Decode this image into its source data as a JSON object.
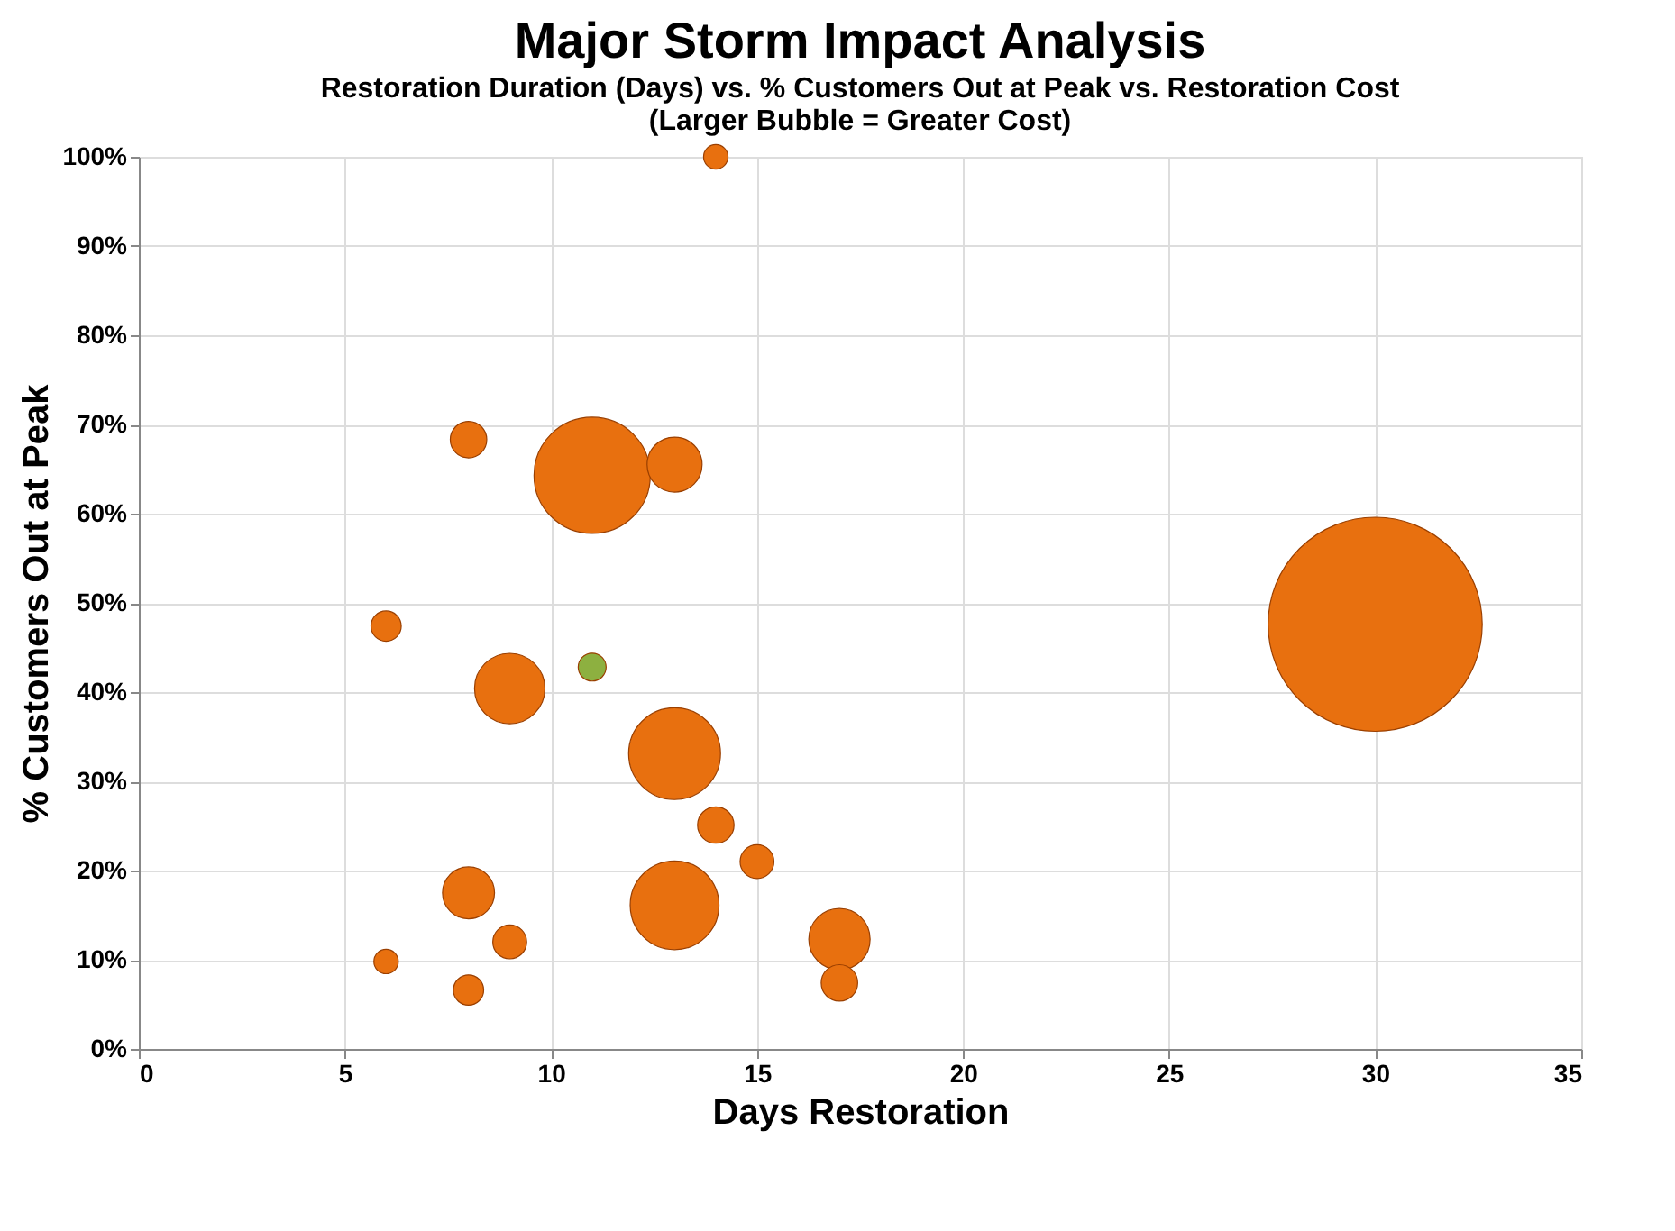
{
  "chart_data": {
    "type": "bubble",
    "title": "Major Storm Impact Analysis",
    "subtitle": "Restoration Duration (Days) vs. % Customers Out at Peak vs. Restoration Cost",
    "annotations": [
      "(Larger Bubble = Greater Cost)"
    ],
    "xlabel": "Days Restoration",
    "ylabel": "% Customers Out at Peak",
    "series": [
      {
        "color": "#e8700f",
        "x": [
          14,
          8,
          11,
          13,
          6,
          30,
          9,
          13,
          14,
          15,
          8,
          13,
          9,
          17,
          6,
          8,
          17
        ],
        "values": [
          100,
          68.3,
          64.3,
          65.5,
          47.4,
          47.6,
          40.4,
          33.1,
          25.1,
          21,
          17.5,
          16.1,
          12,
          12.3,
          9.8,
          6.6,
          7.4
        ],
        "sizes": [
          0.013,
          0.029,
          0.295,
          0.066,
          0.02,
          1,
          0.108,
          0.184,
          0.029,
          0.025,
          0.059,
          0.172,
          0.025,
          0.082,
          0.013,
          0.02,
          0.029
        ]
      },
      {
        "color": "#8db040",
        "x": [
          11
        ],
        "values": [
          42.8
        ],
        "sizes": [
          0.017
        ]
      }
    ],
    "xlim": [
      0,
      35
    ],
    "xticks": [
      0,
      5,
      10,
      15,
      20,
      25,
      30,
      35
    ],
    "ylim": [
      0,
      100
    ],
    "yticks": [
      {
        "value": 0,
        "label": "0%"
      },
      {
        "value": 10,
        "label": "10%"
      },
      {
        "value": 20,
        "label": "20%"
      },
      {
        "value": 30,
        "label": "30%"
      },
      {
        "value": 40,
        "label": "40%"
      },
      {
        "value": 50,
        "label": "50%"
      },
      {
        "value": 60,
        "label": "60%"
      },
      {
        "value": 70,
        "label": "70%"
      },
      {
        "value": 80,
        "label": "80%"
      },
      {
        "value": 90,
        "label": "90%"
      },
      {
        "value": 100,
        "label": "100%"
      }
    ],
    "grid": true,
    "legend": false
  }
}
